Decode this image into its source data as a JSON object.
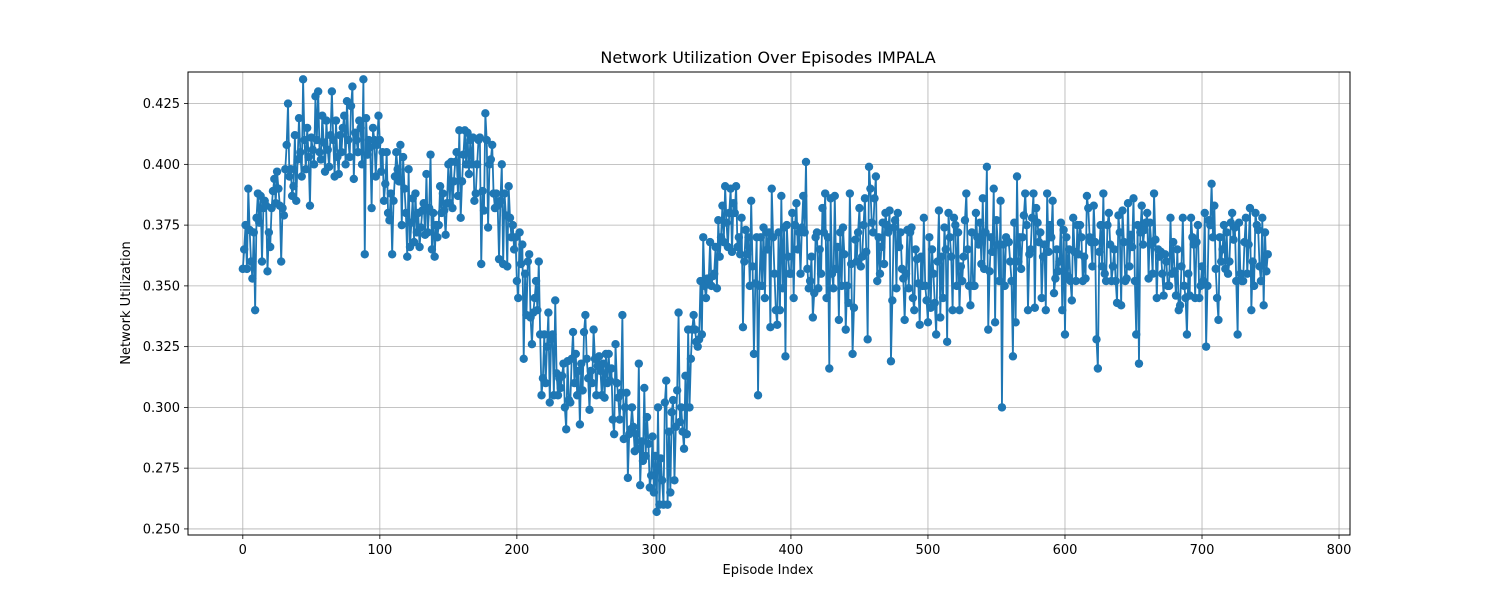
{
  "chart_data": {
    "type": "line",
    "title": "Network Utilization Over Episodes IMPALA",
    "xlabel": "Episode Index",
    "ylabel": "Network Utilization",
    "xlim": [
      -40,
      808
    ],
    "ylim": [
      0.2475,
      0.438
    ],
    "xticks": [
      0,
      100,
      200,
      300,
      400,
      500,
      600,
      700,
      800
    ],
    "yticks": [
      0.25,
      0.275,
      0.3,
      0.325,
      0.35,
      0.375,
      0.4,
      0.425
    ],
    "ytick_labels": [
      "0.250",
      "0.275",
      "0.300",
      "0.325",
      "0.350",
      "0.375",
      "0.400",
      "0.425"
    ],
    "grid": true,
    "marker": "circle",
    "color": "#1f77b4",
    "series": [
      {
        "x_start": 0,
        "x_step": 1,
        "values": [
          0.357,
          0.365,
          0.375,
          0.357,
          0.39,
          0.373,
          0.36,
          0.353,
          0.372,
          0.34,
          0.378,
          0.388,
          0.376,
          0.387,
          0.36,
          0.382,
          0.385,
          0.383,
          0.356,
          0.372,
          0.366,
          0.382,
          0.389,
          0.394,
          0.384,
          0.397,
          0.39,
          0.383,
          0.36,
          0.382,
          0.379,
          0.398,
          0.408,
          0.425,
          0.395,
          0.398,
          0.387,
          0.391,
          0.412,
          0.385,
          0.402,
          0.419,
          0.405,
          0.395,
          0.435,
          0.41,
          0.398,
          0.415,
          0.403,
          0.383,
          0.411,
          0.406,
          0.4,
          0.428,
          0.41,
          0.43,
          0.405,
          0.402,
          0.42,
          0.409,
          0.397,
          0.418,
          0.406,
          0.399,
          0.412,
          0.43,
          0.41,
          0.395,
          0.418,
          0.403,
          0.396,
          0.412,
          0.405,
          0.415,
          0.42,
          0.4,
          0.426,
          0.41,
          0.403,
          0.424,
          0.432,
          0.394,
          0.413,
          0.41,
          0.405,
          0.418,
          0.415,
          0.4,
          0.435,
          0.363,
          0.419,
          0.404,
          0.41,
          0.407,
          0.382,
          0.415,
          0.41,
          0.395,
          0.408,
          0.42,
          0.41,
          0.397,
          0.405,
          0.385,
          0.392,
          0.405,
          0.38,
          0.377,
          0.388,
          0.363,
          0.385,
          0.395,
          0.405,
          0.398,
          0.393,
          0.408,
          0.375,
          0.403,
          0.39,
          0.38,
          0.362,
          0.398,
          0.366,
          0.376,
          0.386,
          0.368,
          0.388,
          0.372,
          0.38,
          0.366,
          0.374,
          0.381,
          0.384,
          0.371,
          0.396,
          0.372,
          0.382,
          0.404,
          0.365,
          0.38,
          0.362,
          0.375,
          0.37,
          0.375,
          0.391,
          0.38,
          0.388,
          0.381,
          0.371,
          0.384,
          0.4,
          0.384,
          0.401,
          0.382,
          0.393,
          0.401,
          0.405,
          0.387,
          0.414,
          0.378,
          0.393,
          0.404,
          0.414,
          0.4,
          0.413,
          0.396,
          0.41,
          0.4,
          0.411,
          0.385,
          0.388,
          0.4,
          0.41,
          0.411,
          0.359,
          0.389,
          0.381,
          0.421,
          0.41,
          0.374,
          0.4,
          0.402,
          0.408,
          0.388,
          0.382,
          0.388,
          0.383,
          0.361,
          0.385,
          0.4,
          0.359,
          0.388,
          0.379,
          0.358,
          0.391,
          0.378,
          0.37,
          0.375,
          0.365,
          0.37,
          0.352,
          0.345,
          0.372,
          0.359,
          0.367,
          0.32,
          0.355,
          0.338,
          0.36,
          0.363,
          0.337,
          0.326,
          0.339,
          0.345,
          0.352,
          0.34,
          0.36,
          0.33,
          0.305,
          0.312,
          0.33,
          0.31,
          0.325,
          0.339,
          0.302,
          0.328,
          0.33,
          0.305,
          0.344,
          0.314,
          0.305,
          0.312,
          0.308,
          0.313,
          0.318,
          0.3,
          0.291,
          0.319,
          0.303,
          0.302,
          0.32,
          0.331,
          0.31,
          0.322,
          0.305,
          0.315,
          0.293,
          0.318,
          0.307,
          0.331,
          0.338,
          0.32,
          0.312,
          0.299,
          0.315,
          0.31,
          0.332,
          0.32,
          0.305,
          0.317,
          0.321,
          0.315,
          0.305,
          0.318,
          0.304,
          0.322,
          0.31,
          0.322,
          0.311,
          0.316,
          0.295,
          0.289,
          0.326,
          0.31,
          0.304,
          0.295,
          0.306,
          0.338,
          0.287,
          0.3,
          0.306,
          0.271,
          0.289,
          0.291,
          0.3,
          0.292,
          0.282,
          0.289,
          0.283,
          0.318,
          0.268,
          0.286,
          0.278,
          0.308,
          0.28,
          0.296,
          0.285,
          0.267,
          0.272,
          0.288,
          0.265,
          0.28,
          0.257,
          0.3,
          0.26,
          0.279,
          0.27,
          0.26,
          0.302,
          0.311,
          0.26,
          0.29,
          0.265,
          0.298,
          0.303,
          0.27,
          0.292,
          0.307,
          0.339,
          0.294,
          0.3,
          0.29,
          0.283,
          0.313,
          0.289,
          0.332,
          0.3,
          0.32,
          0.332,
          0.338,
          0.332,
          0.327,
          0.325,
          0.328,
          0.352,
          0.33,
          0.37,
          0.35,
          0.345,
          0.353,
          0.352,
          0.368,
          0.35,
          0.354,
          0.355,
          0.366,
          0.349,
          0.377,
          0.362,
          0.37,
          0.383,
          0.368,
          0.391,
          0.376,
          0.366,
          0.38,
          0.39,
          0.364,
          0.384,
          0.38,
          0.391,
          0.366,
          0.37,
          0.363,
          0.378,
          0.333,
          0.36,
          0.373,
          0.363,
          0.37,
          0.35,
          0.385,
          0.358,
          0.322,
          0.351,
          0.37,
          0.305,
          0.35,
          0.37,
          0.35,
          0.374,
          0.345,
          0.372,
          0.365,
          0.372,
          0.333,
          0.39,
          0.37,
          0.355,
          0.34,
          0.334,
          0.372,
          0.34,
          0.387,
          0.349,
          0.374,
          0.321,
          0.375,
          0.362,
          0.355,
          0.355,
          0.38,
          0.345,
          0.375,
          0.384,
          0.365,
          0.372,
          0.355,
          0.374,
          0.387,
          0.372,
          0.401,
          0.357,
          0.349,
          0.352,
          0.362,
          0.337,
          0.347,
          0.37,
          0.372,
          0.349,
          0.365,
          0.355,
          0.382,
          0.372,
          0.388,
          0.345,
          0.37,
          0.316,
          0.386,
          0.355,
          0.349,
          0.387,
          0.357,
          0.366,
          0.336,
          0.372,
          0.35,
          0.374,
          0.363,
          0.332,
          0.35,
          0.343,
          0.388,
          0.359,
          0.322,
          0.341,
          0.369,
          0.36,
          0.372,
          0.382,
          0.358,
          0.362,
          0.375,
          0.386,
          0.364,
          0.328,
          0.399,
          0.39,
          0.376,
          0.372,
          0.386,
          0.395,
          0.352,
          0.37,
          0.355,
          0.366,
          0.376,
          0.359,
          0.38,
          0.375,
          0.372,
          0.381,
          0.319,
          0.344,
          0.374,
          0.377,
          0.349,
          0.38,
          0.366,
          0.372,
          0.357,
          0.353,
          0.336,
          0.355,
          0.373,
          0.349,
          0.372,
          0.374,
          0.345,
          0.34,
          0.365,
          0.361,
          0.351,
          0.334,
          0.362,
          0.35,
          0.378,
          0.35,
          0.344,
          0.335,
          0.37,
          0.341,
          0.365,
          0.355,
          0.343,
          0.33,
          0.36,
          0.381,
          0.337,
          0.362,
          0.345,
          0.374,
          0.365,
          0.327,
          0.38,
          0.37,
          0.362,
          0.34,
          0.378,
          0.375,
          0.35,
          0.372,
          0.34,
          0.358,
          0.352,
          0.362,
          0.377,
          0.388,
          0.365,
          0.35,
          0.342,
          0.372,
          0.35,
          0.35,
          0.38,
          0.37,
          0.367,
          0.376,
          0.359,
          0.386,
          0.357,
          0.372,
          0.399,
          0.332,
          0.356,
          0.37,
          0.364,
          0.39,
          0.335,
          0.377,
          0.367,
          0.352,
          0.385,
          0.3,
          0.367,
          0.35,
          0.37,
          0.368,
          0.368,
          0.36,
          0.352,
          0.321,
          0.376,
          0.335,
          0.395,
          0.36,
          0.37,
          0.357,
          0.37,
          0.379,
          0.388,
          0.375,
          0.34,
          0.363,
          0.365,
          0.378,
          0.388,
          0.341,
          0.382,
          0.376,
          0.368,
          0.372,
          0.345,
          0.362,
          0.367,
          0.34,
          0.388,
          0.364,
          0.375,
          0.37,
          0.385,
          0.347,
          0.353,
          0.365,
          0.356,
          0.36,
          0.376,
          0.34,
          0.373,
          0.33,
          0.37,
          0.354,
          0.365,
          0.352,
          0.344,
          0.378,
          0.364,
          0.352,
          0.375,
          0.363,
          0.375,
          0.37,
          0.352,
          0.362,
          0.353,
          0.387,
          0.382,
          0.37,
          0.368,
          0.358,
          0.383,
          0.368,
          0.328,
          0.316,
          0.364,
          0.375,
          0.358,
          0.388,
          0.355,
          0.352,
          0.375,
          0.38,
          0.367,
          0.352,
          0.358,
          0.365,
          0.352,
          0.343,
          0.379,
          0.372,
          0.342,
          0.381,
          0.368,
          0.352,
          0.353,
          0.384,
          0.358,
          0.371,
          0.366,
          0.386,
          0.352,
          0.33,
          0.375,
          0.318,
          0.372,
          0.383,
          0.367,
          0.373,
          0.376,
          0.38,
          0.353,
          0.376,
          0.367,
          0.355,
          0.388,
          0.369,
          0.345,
          0.365,
          0.362,
          0.364,
          0.355,
          0.346,
          0.363,
          0.36,
          0.35,
          0.35,
          0.378,
          0.355,
          0.368,
          0.356,
          0.346,
          0.365,
          0.34,
          0.342,
          0.358,
          0.378,
          0.35,
          0.345,
          0.33,
          0.355,
          0.346,
          0.378,
          0.37,
          0.367,
          0.345,
          0.368,
          0.375,
          0.345,
          0.35,
          0.358,
          0.352,
          0.38,
          0.325,
          0.35,
          0.377,
          0.375,
          0.392,
          0.37,
          0.383,
          0.357,
          0.345,
          0.336,
          0.37,
          0.36,
          0.365,
          0.375,
          0.357,
          0.372,
          0.355,
          0.36,
          0.376,
          0.38,
          0.369,
          0.374,
          0.352,
          0.33,
          0.376,
          0.355,
          0.352,
          0.352,
          0.368,
          0.378,
          0.355,
          0.367,
          0.382,
          0.34,
          0.36,
          0.35,
          0.38,
          0.375,
          0.373,
          0.358,
          0.352,
          0.378,
          0.342,
          0.372,
          0.356,
          0.363
        ]
      }
    ]
  }
}
